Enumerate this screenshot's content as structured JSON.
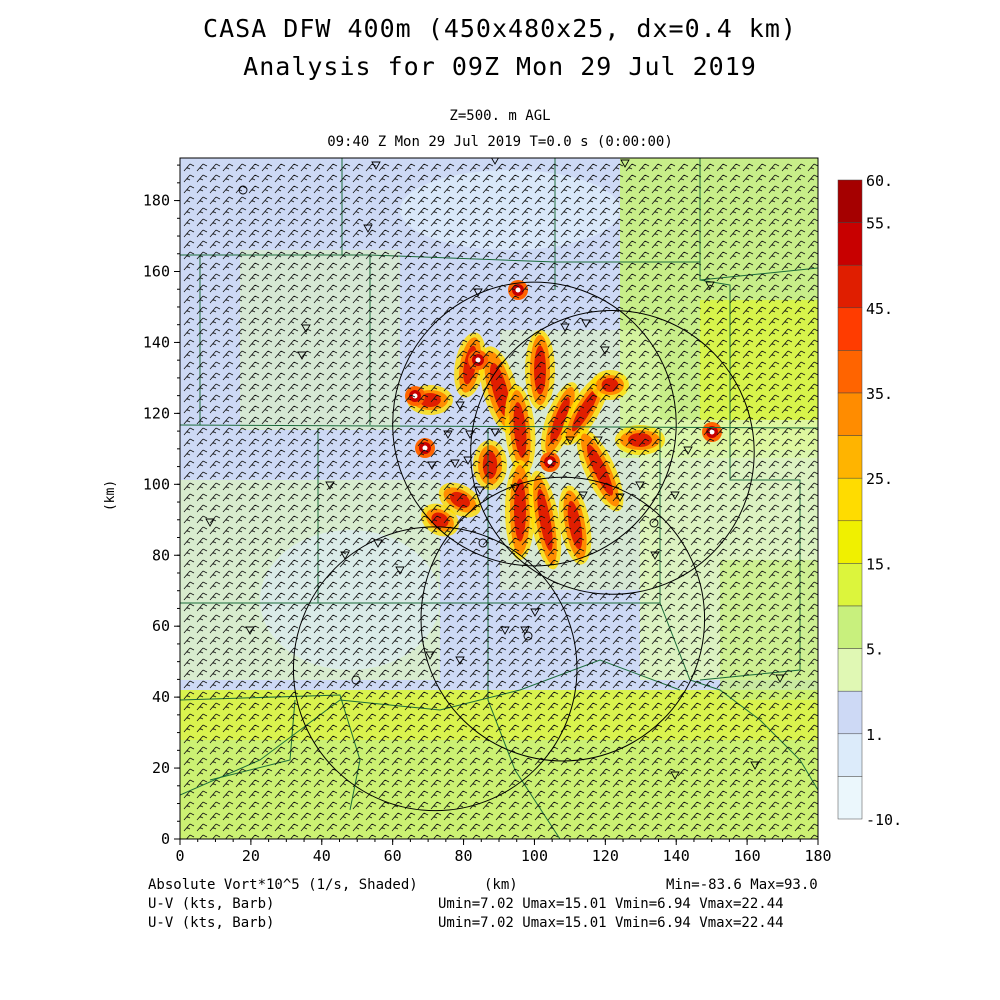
{
  "title": {
    "line1": "CASA DFW 400m (450x480x25, dx=0.4 km)",
    "line2": "Analysis for 09Z Mon 29 Jul 2019"
  },
  "level_label": "Z=500. m AGL",
  "time_label": "09:40 Z Mon 29 Jul 2019   T=0.0 s (0:00:00)",
  "axes": {
    "x_ticks": [
      "0",
      "20",
      "40",
      "60",
      "80",
      "100",
      "120",
      "140",
      "160",
      "180"
    ],
    "y_ticks": [
      "0",
      "20",
      "40",
      "60",
      "80",
      "100",
      "120",
      "140",
      "160",
      "180"
    ],
    "xlabel": "(km)",
    "ylabel": "(km)",
    "x_range": [
      0,
      180
    ],
    "y_range": [
      0,
      192
    ]
  },
  "colorbar": {
    "labels": [
      "60.",
      "55.",
      "45.",
      "35.",
      "25.",
      "15.",
      "5.",
      "1.",
      "-10."
    ],
    "colors": [
      "#a50000",
      "#c80000",
      "#e01e00",
      "#ff3c00",
      "#ff6400",
      "#ff8c00",
      "#ffb400",
      "#ffdc00",
      "#f0f000",
      "#dcf53c",
      "#c8f07d",
      "#e0f8b4",
      "#cdd9f5",
      "#dcebfa",
      "#ebf7fc"
    ]
  },
  "footer": {
    "field": "Absolute Vort*10^5 (1/s, Shaded)",
    "xunits": "(km)",
    "minmax": "Min=-83.6 Max=93.0",
    "vec1": "U-V (kts, Barb)",
    "vec1_stats": "Umin=7.02 Umax=15.01 Vmin=6.94 Vmax=22.44",
    "vec2": "U-V (kts, Barb)",
    "vec2_stats": "Umin=7.02 Umax=15.01 Vmin=6.94 Vmax=22.44"
  },
  "radar_rings": [
    {
      "cx": 72,
      "cy": 48,
      "r": 40
    },
    {
      "cx": 100,
      "cy": 117,
      "r": 40
    },
    {
      "cx": 122,
      "cy": 109,
      "r": 40
    },
    {
      "cx": 108,
      "cy": 62,
      "r": 40
    }
  ],
  "colors": {
    "county_lines": "#1a6b3a",
    "barbs": "#111111",
    "rings": "#000000"
  }
}
